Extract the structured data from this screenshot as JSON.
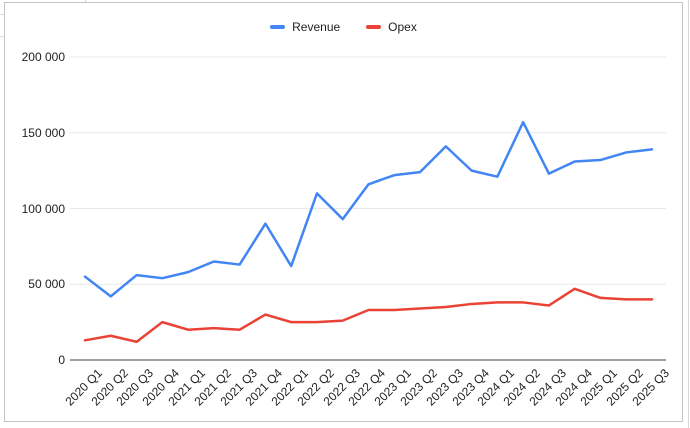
{
  "chart_data": {
    "type": "line",
    "title": "",
    "xlabel": "",
    "ylabel": "",
    "categories": [
      "2020 Q1",
      "2020 Q2",
      "2020 Q3",
      "2020 Q4",
      "2021 Q1",
      "2021 Q2",
      "2021 Q3",
      "2021 Q4",
      "2022 Q1",
      "2022 Q2",
      "2022 Q3",
      "2022 Q4",
      "2023 Q1",
      "2023 Q2",
      "2023 Q3",
      "2023 Q4",
      "2024 Q1",
      "2024 Q2",
      "2024 Q3",
      "2024 Q4",
      "2025 Q1",
      "2025 Q2",
      "2025 Q3"
    ],
    "series": [
      {
        "name": "Revenue",
        "color": "#4285f4",
        "values": [
          55000,
          42000,
          56000,
          54000,
          58000,
          65000,
          63000,
          90000,
          62000,
          110000,
          93000,
          116000,
          122000,
          124000,
          141000,
          125000,
          121000,
          157000,
          123000,
          131000,
          132000,
          137000,
          139000
        ]
      },
      {
        "name": "Opex",
        "color": "#ea4335",
        "values": [
          13000,
          16000,
          12000,
          25000,
          20000,
          21000,
          20000,
          30000,
          25000,
          25000,
          26000,
          33000,
          33000,
          34000,
          35000,
          37000,
          38000,
          38000,
          36000,
          47000,
          41000,
          40000,
          40000
        ]
      }
    ],
    "ylim": [
      0,
      200000
    ],
    "yticks": [
      0,
      50000,
      100000,
      150000,
      200000
    ],
    "ytick_labels": [
      "0",
      "50 000",
      "100 000",
      "150 000",
      "200 000"
    ],
    "grid": true,
    "legend_position": "top"
  },
  "colors": {
    "grid": "#e8e8e8",
    "axis": "#9e9e9e",
    "text": "#1f1f1f",
    "frame_border": "#c4c4c4",
    "background": "#ffffff"
  }
}
